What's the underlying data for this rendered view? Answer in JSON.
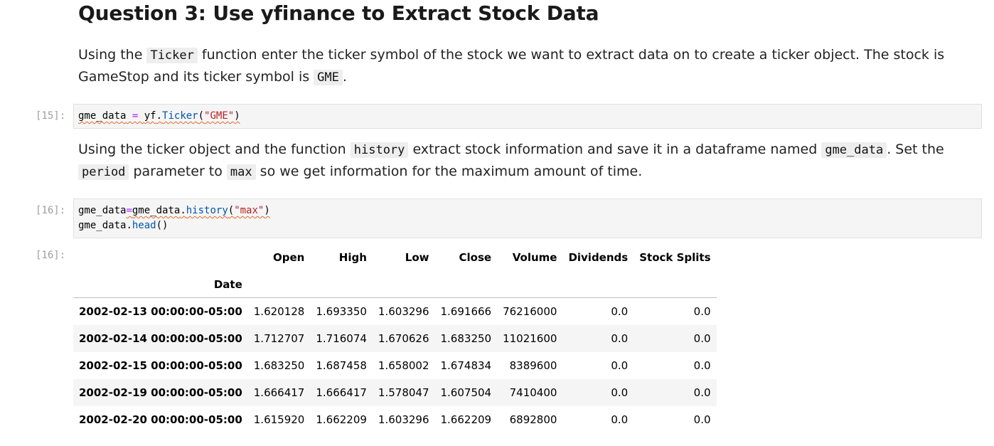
{
  "heading": "Question 3: Use yfinance to Extract Stock Data",
  "md1": {
    "t1": "Using the ",
    "c1": "Ticker",
    "t2": " function enter the ticker symbol of the stock we want to extract data on to create a ticker object. The stock is GameStop and its ticker symbol is ",
    "c2": "GME",
    "t3": "."
  },
  "cell15": {
    "prompt": "[15]:",
    "code": {
      "var": "gme_data",
      "eq": " = ",
      "mod": "yf",
      "dot": ".",
      "fn": "Ticker",
      "lp": "(",
      "arg": "\"GME\"",
      "rp": ")"
    }
  },
  "md2": {
    "t1": "Using the ticker object and the function ",
    "c1": "history",
    "t2": " extract stock information and save it in a dataframe named ",
    "c2": "gme_data",
    "t3": ". Set the ",
    "c3": "period",
    "t4": " parameter to ",
    "c4": "max",
    "t5": " so we get information for the maximum amount of time."
  },
  "cell16": {
    "prompt": "[16]:",
    "line1": {
      "var": "gme_data",
      "eq": "=",
      "obj": "gme_data",
      "dot": ".",
      "fn": "history",
      "lp": "(",
      "arg": "\"max\"",
      "rp": ")"
    },
    "line2": {
      "obj": "gme_data",
      "dot": ".",
      "fn": "head",
      "parens": "()"
    }
  },
  "out16": {
    "prompt": "[16]:",
    "columns": [
      "Open",
      "High",
      "Low",
      "Close",
      "Volume",
      "Dividends",
      "Stock Splits"
    ],
    "index_name": "Date",
    "rows": [
      {
        "date": "2002-02-13 00:00:00-05:00",
        "values": [
          "1.620128",
          "1.693350",
          "1.603296",
          "1.691666",
          "76216000",
          "0.0",
          "0.0"
        ]
      },
      {
        "date": "2002-02-14 00:00:00-05:00",
        "values": [
          "1.712707",
          "1.716074",
          "1.670626",
          "1.683250",
          "11021600",
          "0.0",
          "0.0"
        ]
      },
      {
        "date": "2002-02-15 00:00:00-05:00",
        "values": [
          "1.683250",
          "1.687458",
          "1.658002",
          "1.674834",
          "8389600",
          "0.0",
          "0.0"
        ]
      },
      {
        "date": "2002-02-19 00:00:00-05:00",
        "values": [
          "1.666417",
          "1.666417",
          "1.578047",
          "1.607504",
          "7410400",
          "0.0",
          "0.0"
        ]
      },
      {
        "date": "2002-02-20 00:00:00-05:00",
        "values": [
          "1.615920",
          "1.662209",
          "1.603296",
          "1.662209",
          "6892800",
          "0.0",
          "0.0"
        ]
      }
    ]
  }
}
